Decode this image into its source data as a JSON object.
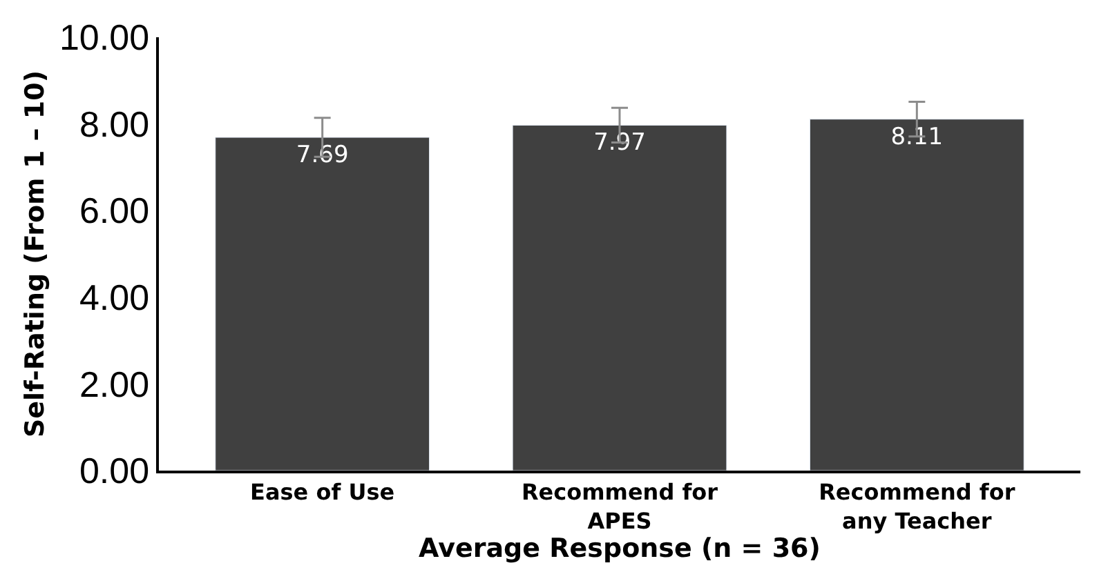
{
  "chart_data": {
    "type": "bar",
    "categories": [
      "Ease of Use",
      "Recommend for\nAPES",
      "Recommend for\nany Teacher"
    ],
    "values": [
      7.69,
      7.97,
      8.11
    ],
    "errors": [
      0.45,
      0.4,
      0.4
    ],
    "color": "#404040",
    "data_labels": true,
    "xlabel": "Average Response (n = 36)",
    "ylabel": "Self-Rating (From 1 – 10)",
    "ylim": [
      0,
      10
    ],
    "yticks": [
      {
        "value": 0,
        "label": "0.00"
      },
      {
        "value": 2,
        "label": "2.00"
      },
      {
        "value": 4,
        "label": "4.00"
      },
      {
        "value": 6,
        "label": "6.00"
      },
      {
        "value": 8,
        "label": "8.00"
      },
      {
        "value": 10,
        "label": "10.00"
      }
    ],
    "legend": false
  }
}
